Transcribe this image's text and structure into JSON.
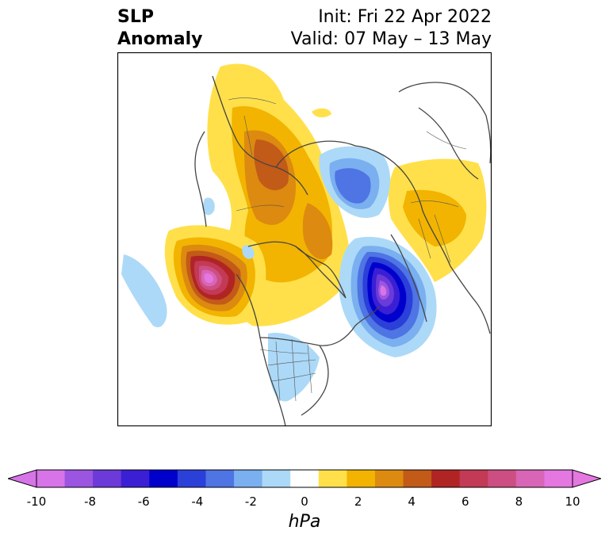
{
  "title": {
    "left_line1": "SLP",
    "left_line2": "Anomaly",
    "init": "Init: Fri 22 Apr 2022",
    "valid": "Valid: 07 May – 13 May"
  },
  "colorbar": {
    "unit": "hPa",
    "ticks": [
      "-10",
      "-8",
      "-6",
      "-4",
      "-2",
      "0",
      "2",
      "4",
      "6",
      "8",
      "10"
    ],
    "colors": [
      "#d674e8",
      "#9b55e0",
      "#6b3ad8",
      "#3b1fd4",
      "#0000cd",
      "#2b3fd9",
      "#4f74e3",
      "#7aaff0",
      "#acd9f7",
      "#ffffff",
      "#ffe04a",
      "#f2b400",
      "#dc8a10",
      "#c25a18",
      "#b12424",
      "#c23a55",
      "#cd4e82",
      "#d865b5",
      "#e477e0"
    ],
    "under_color": "#d674e8",
    "over_color": "#e477e0"
  }
}
